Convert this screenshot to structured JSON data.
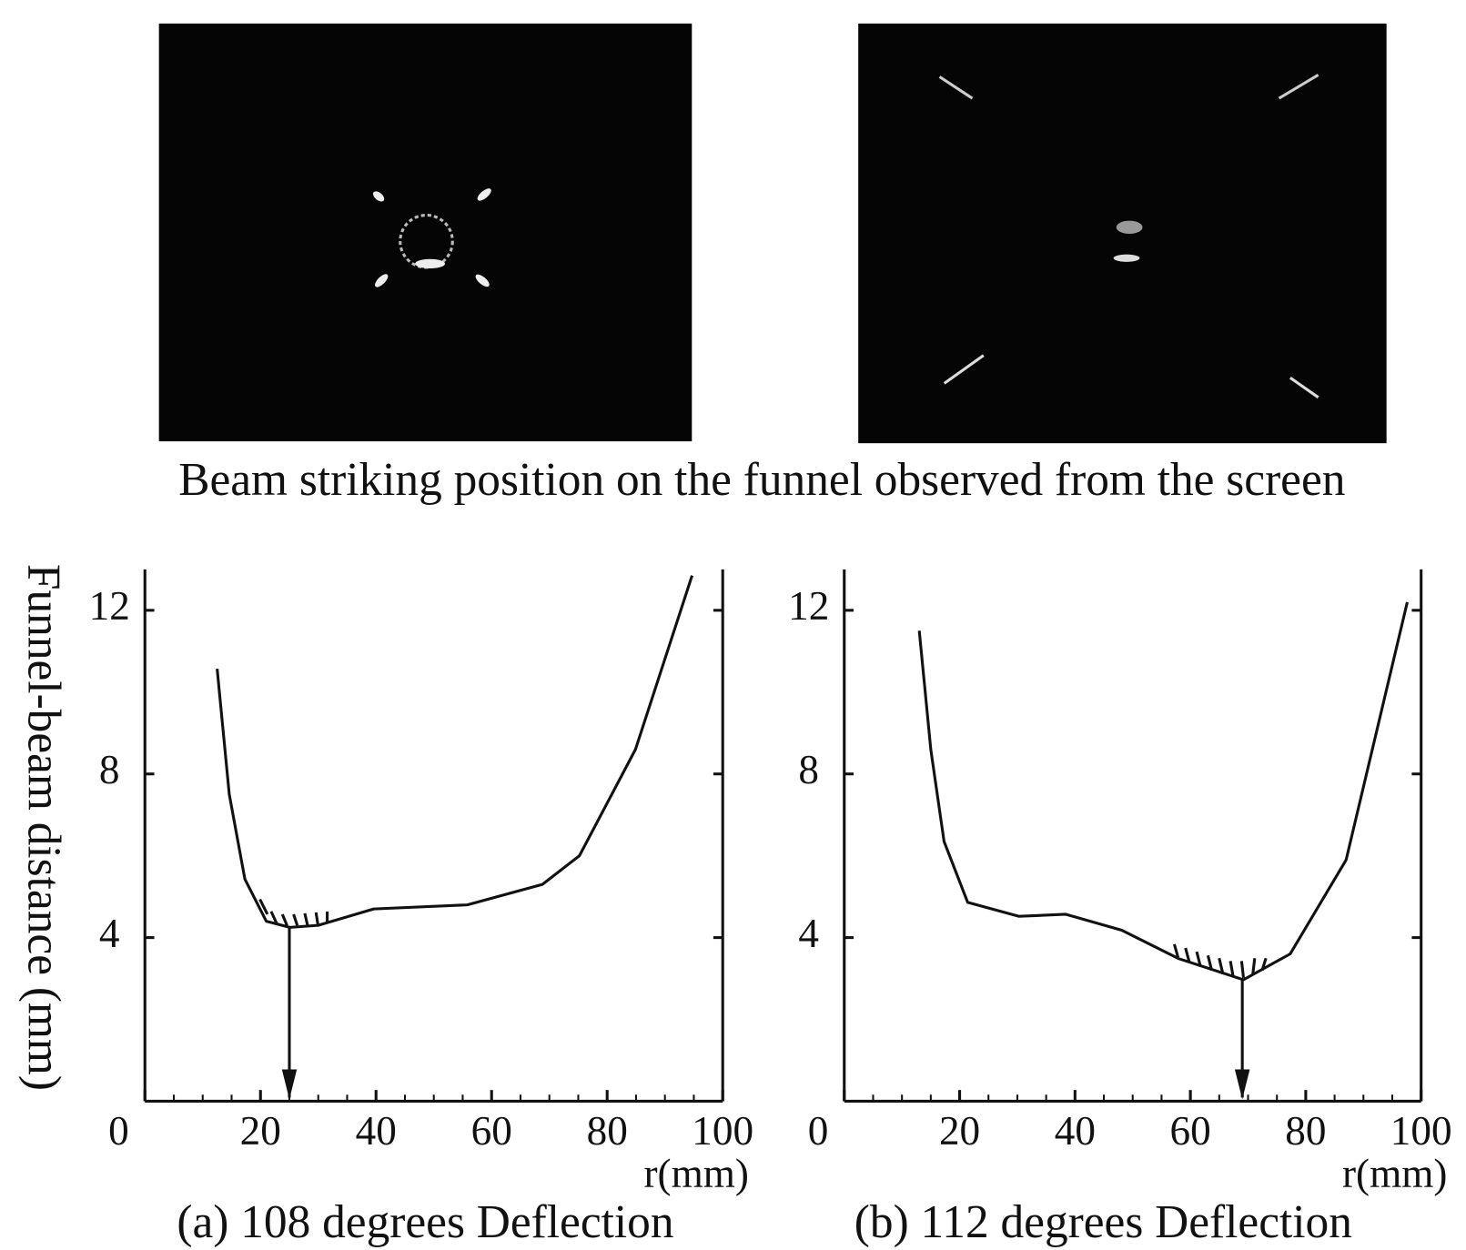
{
  "figure_caption": "Beam striking position on the funnel observed from the screen",
  "chart_data": [
    {
      "type": "line",
      "title": "(a) 108 degrees Deflection",
      "ylabel": "Funnel-beam distance (mm)",
      "xlabel": "r(mm)",
      "xlim": [
        0,
        100
      ],
      "xticks": [
        0,
        20,
        40,
        60,
        80,
        100
      ],
      "ylim": [
        0,
        13
      ],
      "yticks": [
        4,
        8,
        12
      ],
      "x": [
        12.5,
        14.6,
        17.3,
        21.0,
        25.1,
        30.0,
        39.6,
        55.8,
        68.8,
        75.2,
        84.9,
        94.7
      ],
      "values": [
        10.57,
        7.5,
        5.43,
        4.4,
        4.25,
        4.3,
        4.7,
        4.8,
        5.3,
        6.0,
        8.6,
        12.85
      ],
      "color": "#111111",
      "arrow_x": 25
    },
    {
      "type": "line",
      "title": "(b) 112 degrees Deflection",
      "xlabel": "r(mm)",
      "xlim": [
        0,
        100
      ],
      "xticks": [
        0,
        20,
        40,
        60,
        80,
        100
      ],
      "ylim": [
        0,
        13
      ],
      "yticks": [
        4,
        8,
        12
      ],
      "x": [
        13.0,
        15.0,
        17.3,
        21.4,
        30.3,
        38.4,
        48.1,
        57.9,
        69.2,
        77.3,
        87.0,
        97.6
      ],
      "values": [
        11.5,
        8.6,
        6.35,
        4.86,
        4.52,
        4.57,
        4.18,
        3.49,
        2.97,
        3.6,
        5.9,
        12.2
      ],
      "color": "#111111",
      "arrow_x": 69
    }
  ]
}
